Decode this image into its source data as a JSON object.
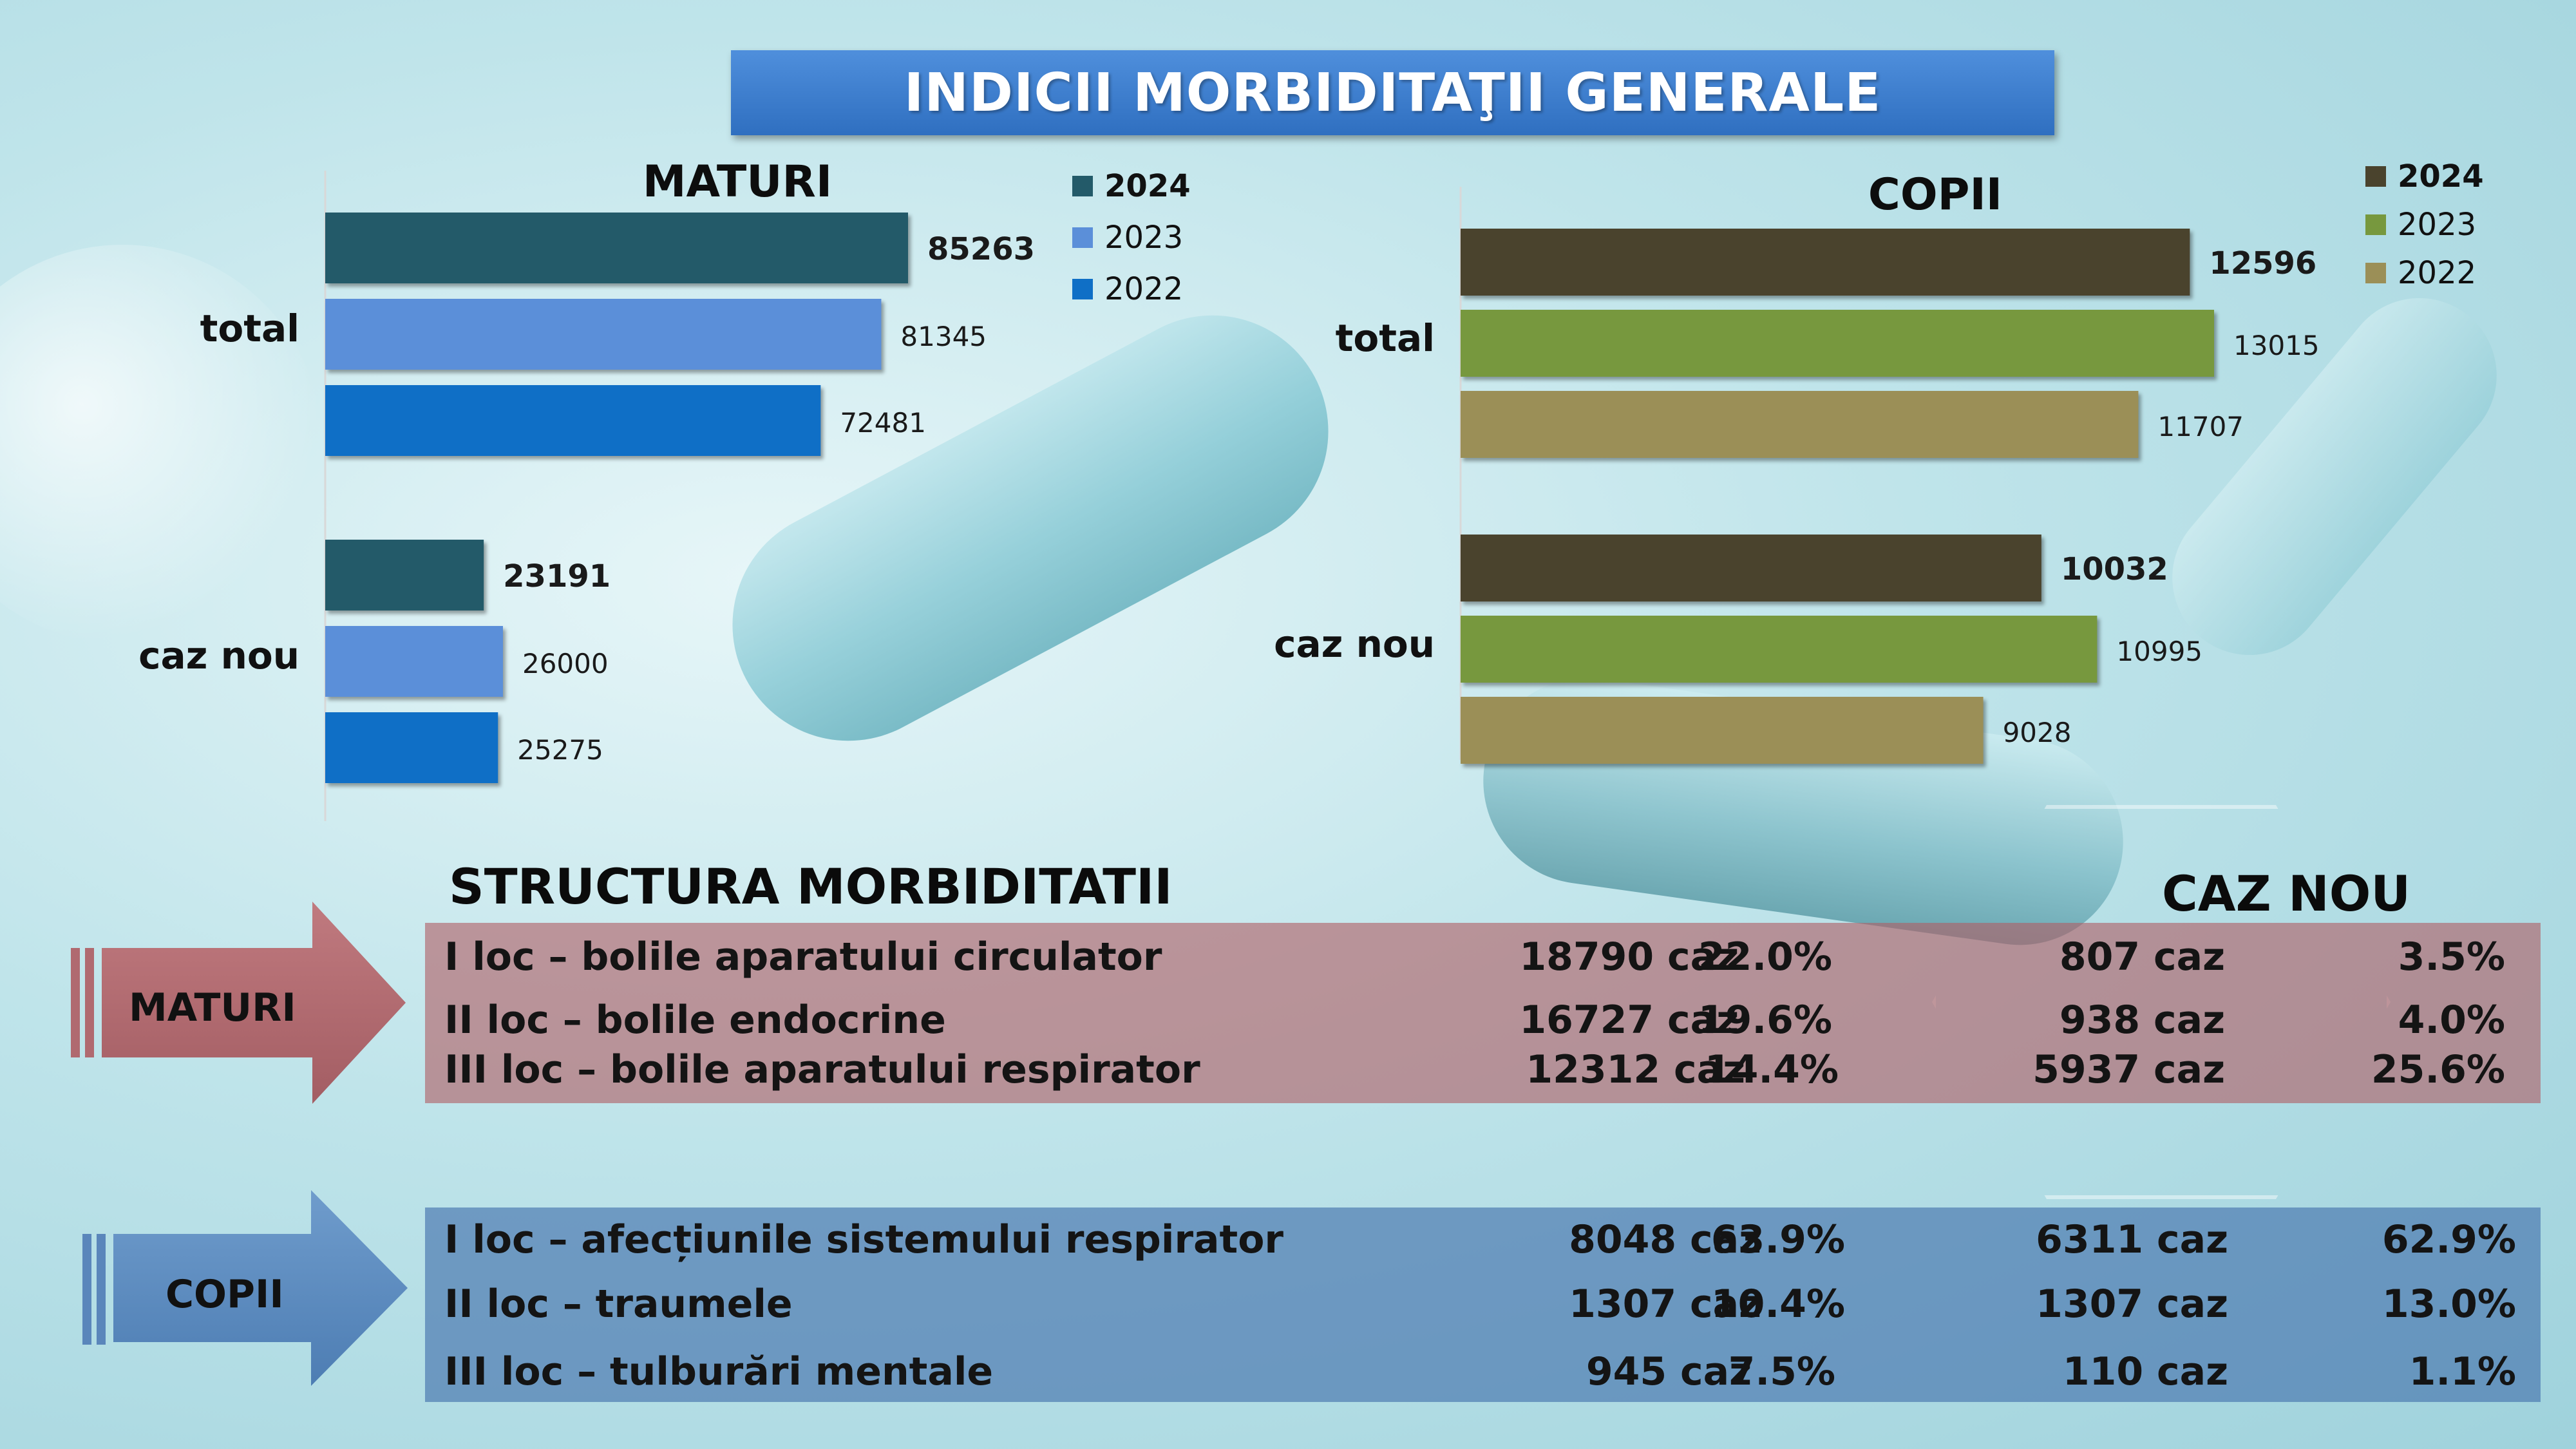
{
  "title": "INDICII MORBIDITAŢII GENERALE",
  "chart_data": [
    {
      "type": "bar",
      "orientation": "horizontal",
      "title": "MATURI",
      "categories": [
        "total",
        "caz nou"
      ],
      "series": [
        {
          "name": "2024",
          "color": "#235a69",
          "values": [
            85263,
            23191
          ],
          "labels": [
            "85263",
            "23191"
          ]
        },
        {
          "name": "2023",
          "color": "#5b8fd9",
          "values": [
            81345,
            26000
          ],
          "labels": [
            "81345",
            "26000"
          ]
        },
        {
          "name": "2022",
          "color": "#0f6fc6",
          "values": [
            72481,
            25275
          ],
          "labels": [
            "72481",
            "25275"
          ]
        }
      ],
      "legend": "right"
    },
    {
      "type": "bar",
      "orientation": "horizontal",
      "title": "COPII",
      "categories": [
        "total",
        "caz nou"
      ],
      "series": [
        {
          "name": "2024",
          "color": "#4a432d",
          "values": [
            12596,
            10032
          ],
          "labels": [
            "12596",
            "10032"
          ]
        },
        {
          "name": "2023",
          "color": "#77983e",
          "values": [
            13015,
            10995
          ],
          "labels": [
            "13015",
            "10995"
          ]
        },
        {
          "name": "2022",
          "color": "#9b8f57",
          "values": [
            11707,
            9028
          ],
          "labels": [
            "11707",
            "9028"
          ]
        }
      ],
      "legend": "right"
    }
  ],
  "structure": {
    "heading": "STRUCTURA MORBIDITATII",
    "caz_nou_heading": "CAZ NOU",
    "maturi": {
      "label": "MATURI",
      "color": "#b06066",
      "rows": [
        {
          "label": "I loc – bolile aparatului circulator",
          "caz": "18790 caz",
          "pct": "22.0%",
          "nou_caz": "807 caz",
          "nou_pct": "3.5%"
        },
        {
          "label": "II loc – bolile endocrine",
          "caz": "16727 caz",
          "pct": "19.6%",
          "nou_caz": "938 caz",
          "nou_pct": "4.0%"
        },
        {
          "label": "III loc – bolile aparatului respirator",
          "caz": "12312 caz",
          "pct": "14.4%",
          "nou_caz": "5937 caz",
          "nou_pct": "25.6%"
        }
      ]
    },
    "copii": {
      "label": "COPII",
      "color": "#4a78b0",
      "rows": [
        {
          "label": "I loc – afecțiunile sistemului respirator",
          "caz": "8048 caz",
          "pct": "63.9%",
          "nou_caz": "6311 caz",
          "nou_pct": "62.9%"
        },
        {
          "label": "II loc – traumele",
          "caz": "1307 caz",
          "pct": "10.4%",
          "nou_caz": "1307 caz",
          "nou_pct": "13.0%"
        },
        {
          "label": "III loc – tulburări mentale",
          "caz": "945 caz",
          "pct": "7.5%",
          "nou_caz": "110 caz",
          "nou_pct": "1.1%"
        }
      ]
    }
  }
}
